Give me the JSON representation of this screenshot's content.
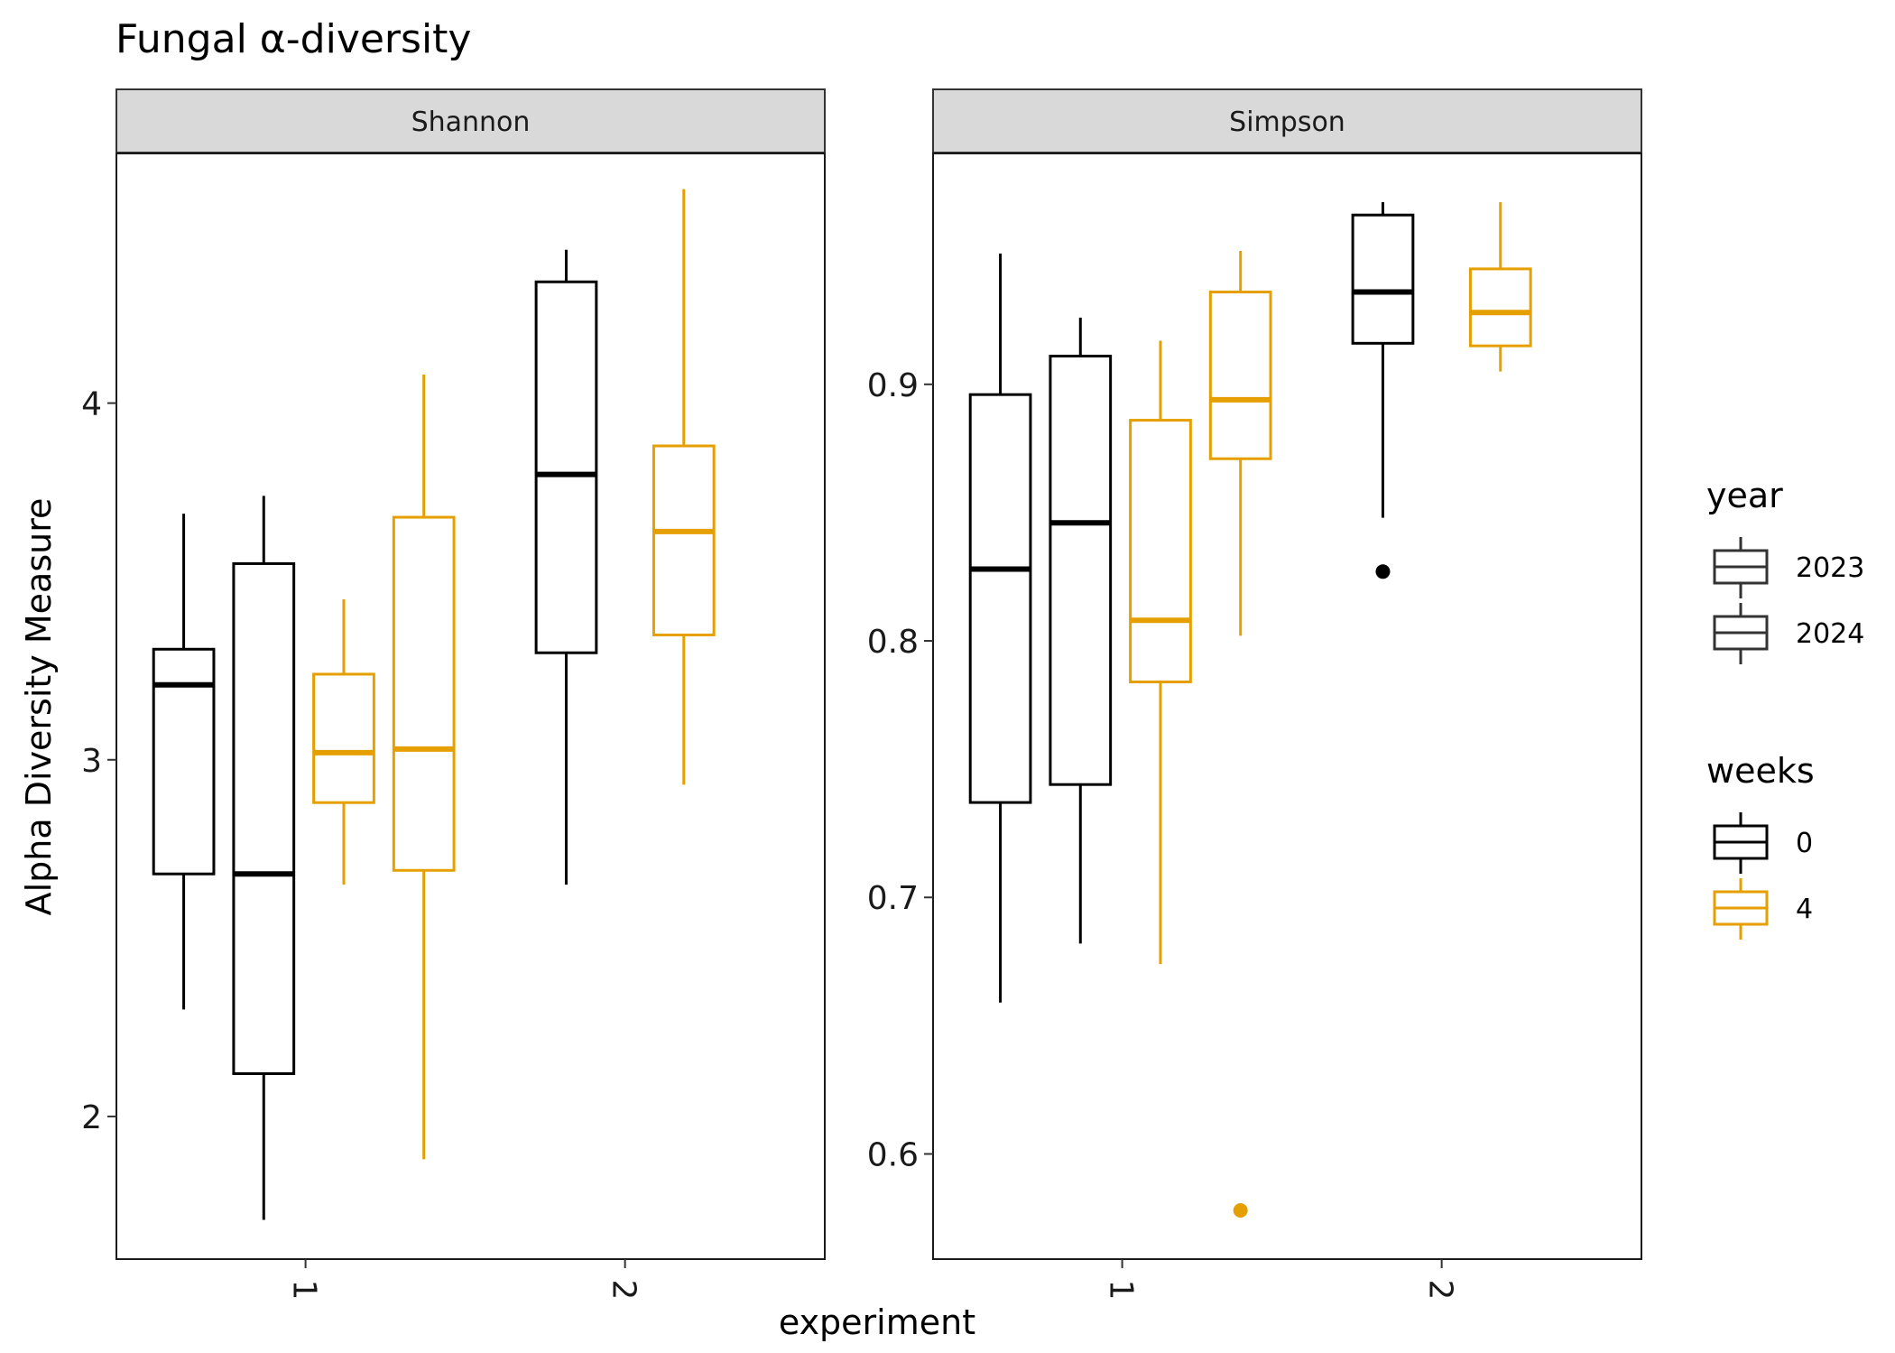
{
  "chart_data": {
    "type": "boxplot",
    "title": "Fungal α-diversity",
    "xlabel": "experiment",
    "ylabel": "Alpha Diversity Measure",
    "x_categories": [
      "1",
      "2"
    ],
    "x_tick_rotation_deg": 90,
    "grid": false,
    "legend_placement": "right",
    "legends": [
      {
        "title": "year",
        "key": "linetype",
        "entries": [
          "2023",
          "2024"
        ],
        "color": "#333333"
      },
      {
        "title": "weeks",
        "key": "color",
        "entries": [
          "0",
          "4"
        ],
        "colors": {
          "0": "#000000",
          "4": "#E69F00"
        }
      }
    ],
    "panels": [
      {
        "name": "Shannon",
        "ylim": [
          1.6,
          4.7
        ],
        "yticks": [
          "2",
          "3",
          "4"
        ],
        "boxes": [
          {
            "experiment": "1",
            "year": "2023",
            "weeks": "0",
            "whisker_low": 2.3,
            "q1": 2.68,
            "median": 3.21,
            "q3": 3.31,
            "whisker_high": 3.69,
            "outliers": []
          },
          {
            "experiment": "1",
            "year": "2024",
            "weeks": "0",
            "whisker_low": 1.71,
            "q1": 2.12,
            "median": 2.68,
            "q3": 3.55,
            "whisker_high": 3.74,
            "outliers": []
          },
          {
            "experiment": "1",
            "year": "2023",
            "weeks": "4",
            "whisker_low": 2.65,
            "q1": 2.88,
            "median": 3.02,
            "q3": 3.24,
            "whisker_high": 3.45,
            "outliers": []
          },
          {
            "experiment": "1",
            "year": "2024",
            "weeks": "4",
            "whisker_low": 1.88,
            "q1": 2.69,
            "median": 3.03,
            "q3": 3.68,
            "whisker_high": 4.08,
            "outliers": []
          },
          {
            "experiment": "2",
            "year": "2024",
            "weeks": "0",
            "whisker_low": 2.65,
            "q1": 3.3,
            "median": 3.8,
            "q3": 4.34,
            "whisker_high": 4.43,
            "outliers": []
          },
          {
            "experiment": "2",
            "year": "2024",
            "weeks": "4",
            "whisker_low": 2.93,
            "q1": 3.35,
            "median": 3.64,
            "q3": 3.88,
            "whisker_high": 4.6,
            "outliers": []
          }
        ]
      },
      {
        "name": "Simpson",
        "ylim": [
          0.559,
          0.99
        ],
        "yticks": [
          "0.6",
          "0.7",
          "0.8",
          "0.9"
        ],
        "boxes": [
          {
            "experiment": "1",
            "year": "2023",
            "weeks": "0",
            "whisker_low": 0.659,
            "q1": 0.737,
            "median": 0.828,
            "q3": 0.896,
            "whisker_high": 0.951,
            "outliers": []
          },
          {
            "experiment": "1",
            "year": "2024",
            "weeks": "0",
            "whisker_low": 0.682,
            "q1": 0.744,
            "median": 0.846,
            "q3": 0.911,
            "whisker_high": 0.926,
            "outliers": []
          },
          {
            "experiment": "1",
            "year": "2023",
            "weeks": "4",
            "whisker_low": 0.674,
            "q1": 0.784,
            "median": 0.808,
            "q3": 0.886,
            "whisker_high": 0.917,
            "outliers": []
          },
          {
            "experiment": "1",
            "year": "2024",
            "weeks": "4",
            "whisker_low": 0.802,
            "q1": 0.871,
            "median": 0.894,
            "q3": 0.936,
            "whisker_high": 0.952,
            "outliers": [
              0.578
            ]
          },
          {
            "experiment": "2",
            "year": "2024",
            "weeks": "0",
            "whisker_low": 0.848,
            "q1": 0.916,
            "median": 0.936,
            "q3": 0.966,
            "whisker_high": 0.971,
            "outliers": [
              0.827
            ]
          },
          {
            "experiment": "2",
            "year": "2024",
            "weeks": "4",
            "whisker_low": 0.905,
            "q1": 0.915,
            "median": 0.928,
            "q3": 0.945,
            "whisker_high": 0.971,
            "outliers": []
          }
        ]
      }
    ]
  }
}
